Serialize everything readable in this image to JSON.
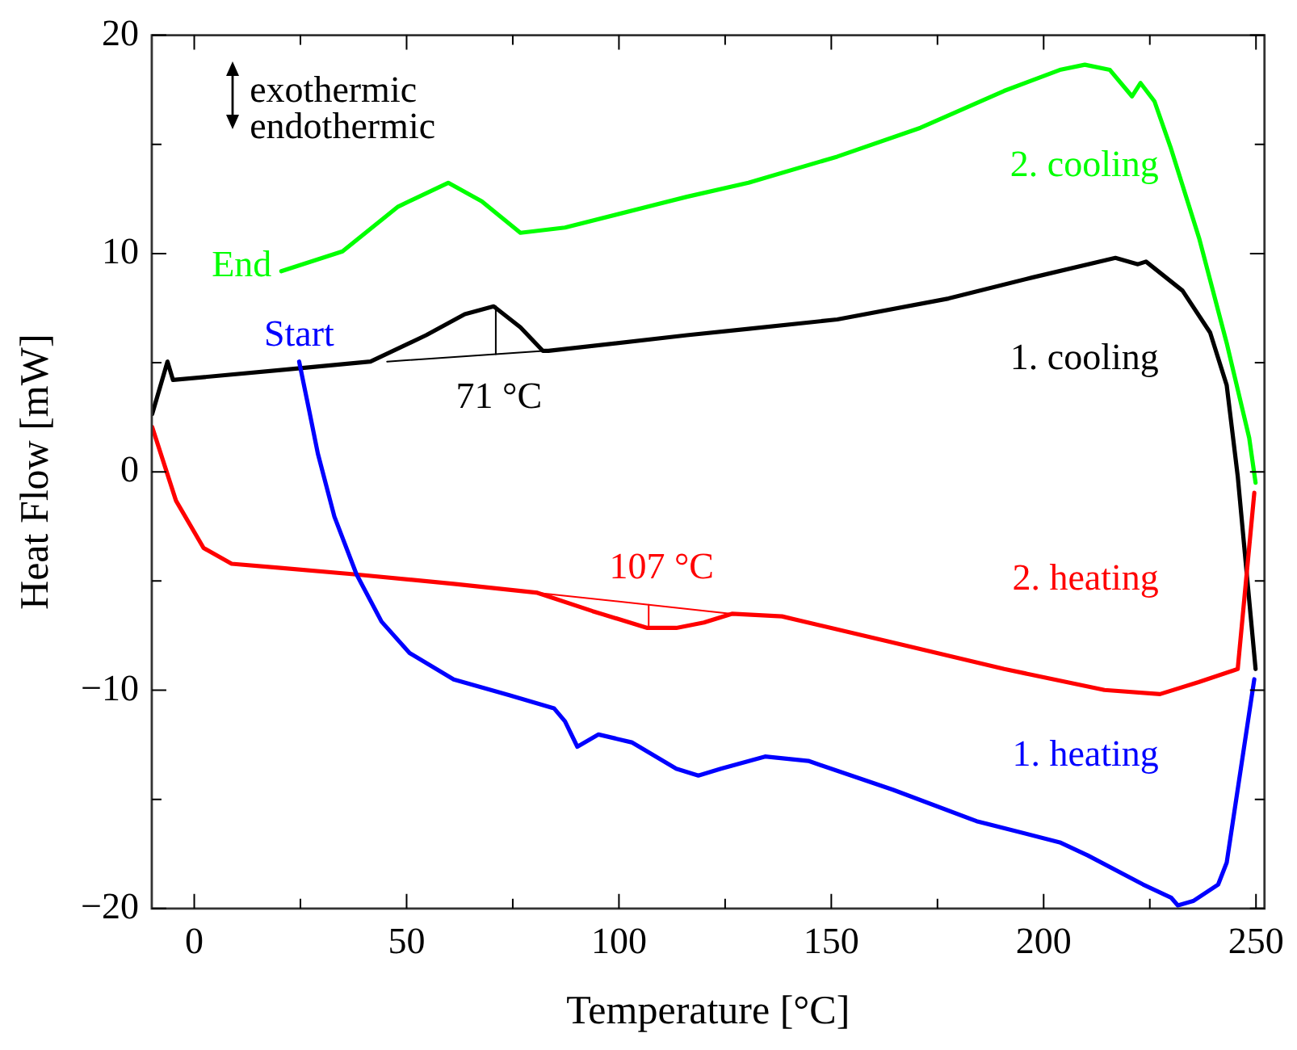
{
  "chart_data": {
    "type": "line",
    "xlabel": "Temperature [°C]",
    "ylabel": "Heat Flow [mW]",
    "xlim": [
      -10,
      252
    ],
    "ylim": [
      -20,
      20
    ],
    "xticks": [
      0,
      {
        "value": 25,
        "label": null
      },
      50,
      {
        "value": 75,
        "label": null
      },
      100,
      {
        "value": 125,
        "label": null
      },
      150,
      {
        "value": 175,
        "label": null
      },
      200,
      {
        "value": 225,
        "label": null
      },
      250
    ],
    "yticks": [
      {
        "value": -20,
        "label": "−20"
      },
      {
        "value": -15,
        "label": null
      },
      {
        "value": -10,
        "label": "−10"
      },
      {
        "value": -5,
        "label": null
      },
      0,
      {
        "value": 5,
        "label": null
      },
      10,
      {
        "value": 15,
        "label": null
      },
      20
    ],
    "grid": false,
    "legend": false,
    "marker": "none",
    "line_style": "solid",
    "series": [
      {
        "name": "1. heating",
        "color": "#0000ff",
        "x": [
          24.7,
          27.1,
          29.1,
          33.0,
          38.2,
          44.1,
          50.7,
          61.1,
          74.2,
          84.7,
          87.3,
          90.2,
          95.2,
          103.0,
          113.5,
          118.7,
          124.0,
          134.4,
          144.6,
          164.5,
          184.2,
          203.8,
          210.4,
          223.4,
          230.0,
          231.6,
          235.2,
          241.1,
          243.1,
          249.6
        ],
        "values": [
          5.05,
          2.77,
          0.84,
          -2.05,
          -4.69,
          -6.86,
          -8.3,
          -9.51,
          -10.23,
          -10.83,
          -11.43,
          -12.59,
          -12.03,
          -12.39,
          -13.6,
          -13.91,
          -13.6,
          -13.04,
          -13.24,
          -14.56,
          -16.0,
          -16.97,
          -17.57,
          -18.9,
          -19.5,
          -19.86,
          -19.66,
          -18.9,
          -17.9,
          -9.5
        ]
      },
      {
        "name": "2. heating",
        "color": "#ff0000",
        "x": [
          -9.9,
          -4.3,
          2.2,
          8.8,
          19.2,
          37.6,
          61.1,
          80.8,
          93.8,
          106.7,
          113.5,
          120.0,
          126.6,
          138.4,
          164.5,
          190.7,
          214.3,
          227.4,
          236.5,
          245.7,
          249.6
        ],
        "values": [
          2.05,
          -1.32,
          -3.49,
          -4.21,
          -4.38,
          -4.69,
          -5.13,
          -5.54,
          -6.38,
          -7.15,
          -7.15,
          -6.9,
          -6.5,
          -6.62,
          -7.82,
          -9.03,
          -9.99,
          -10.18,
          -9.63,
          -9.03,
          -0.96
        ]
      },
      {
        "name": "1. cooling",
        "color": "#000000",
        "x": [
          249.9,
          245.7,
          243.1,
          239.2,
          232.7,
          224.1,
          222.2,
          216.9,
          197.3,
          177.6,
          151.4,
          130.5,
          116.0,
          83.4,
          82.1,
          76.8,
          70.5,
          63.7,
          54.6,
          41.5,
          21.9,
          -5.0,
          -6.3,
          -9.9
        ],
        "values": [
          -9.03,
          -0.2,
          3.97,
          6.38,
          8.3,
          9.63,
          9.51,
          9.8,
          8.9,
          7.94,
          6.98,
          6.55,
          6.26,
          5.54,
          5.54,
          6.62,
          7.58,
          7.22,
          6.26,
          5.05,
          4.69,
          4.21,
          5.05,
          2.65
        ]
      },
      {
        "name": "2. cooling",
        "color": "#00ff00",
        "x": [
          249.9,
          248.4,
          243.1,
          236.6,
          230.0,
          226.1,
          222.8,
          220.8,
          215.6,
          209.7,
          203.8,
          190.7,
          171.0,
          151.4,
          130.5,
          116.0,
          87.3,
          76.8,
          67.7,
          59.8,
          48.0,
          34.9,
          20.5
        ],
        "values": [
          -0.5,
          1.56,
          5.9,
          10.71,
          14.8,
          16.97,
          17.81,
          17.2,
          18.41,
          18.65,
          18.41,
          17.45,
          15.76,
          14.44,
          13.24,
          12.6,
          11.19,
          10.95,
          12.39,
          13.24,
          12.15,
          10.1,
          9.19
        ]
      },
      {
        "color": "#000000",
        "x": [
          45.4,
          82.1
        ],
        "values": [
          5.05,
          5.54
        ]
      },
      {
        "color": "#000000",
        "x": [
          71,
          71
        ],
        "values": [
          7.58,
          5.39
        ]
      },
      {
        "color": "#ff0000",
        "x": [
          80.8,
          126.6
        ],
        "values": [
          -5.54,
          -6.5
        ]
      },
      {
        "color": "#ff0000",
        "x": [
          107,
          107
        ],
        "values": [
          -7.15,
          -6.09
        ]
      }
    ],
    "annotations": [
      "exothermic",
      "endothermic",
      {
        "text": "Start",
        "x": 24.7,
        "y": 5.05
      },
      {
        "text": "End",
        "x": 20.5,
        "y": 9.19
      },
      {
        "text": "71 °C",
        "x": 71,
        "y": 7.58
      },
      {
        "text": "107 °C",
        "x": 107,
        "y": -7.15
      }
    ]
  }
}
